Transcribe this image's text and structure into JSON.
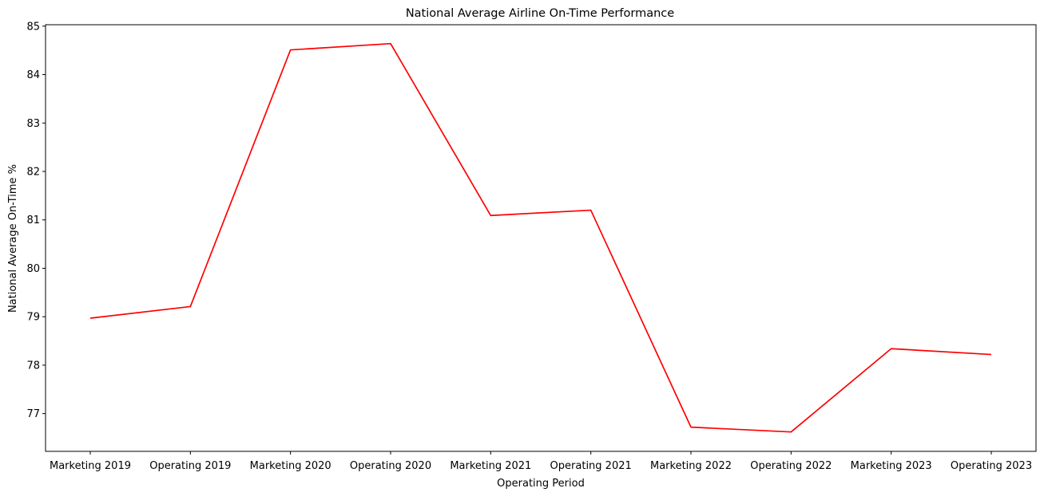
{
  "chart_data": {
    "type": "line",
    "title": "National Average Airline On-Time Performance",
    "xlabel": "Operating Period",
    "ylabel": "National Average On-Time %",
    "categories": [
      "Marketing 2019",
      "Operating 2019",
      "Marketing 2020",
      "Operating 2020",
      "Marketing 2021",
      "Operating 2021",
      "Marketing 2022",
      "Operating 2022",
      "Marketing 2023",
      "Operating 2023"
    ],
    "series": [
      {
        "values": [
          78.97,
          79.21,
          84.51,
          84.64,
          81.09,
          81.2,
          76.72,
          76.62,
          78.34,
          78.22
        ]
      }
    ],
    "yticks": [
      77,
      78,
      79,
      80,
      81,
      82,
      83,
      84,
      85
    ],
    "ylim": [
      76.22,
      85.03
    ],
    "grid": false,
    "line_color": "#ff0000"
  }
}
